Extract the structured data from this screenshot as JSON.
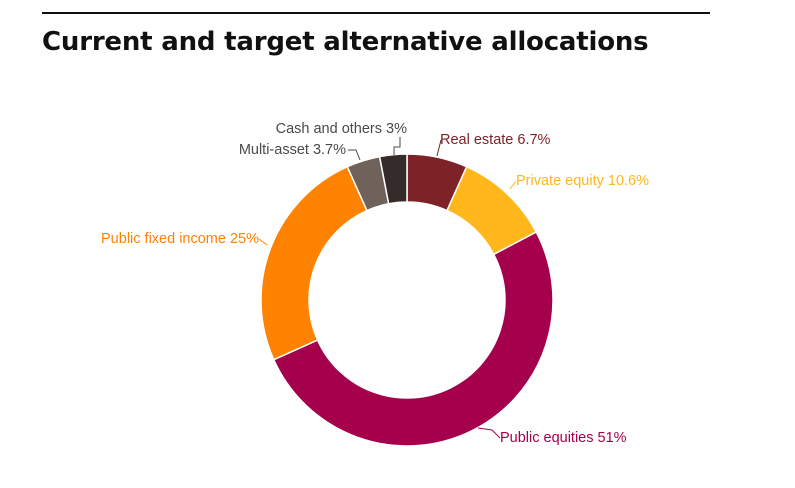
{
  "page": {
    "title": "Current and target alternative allocations"
  },
  "chart_data": {
    "type": "pie",
    "title": "Current and target alternative allocations",
    "slices": [
      {
        "name": "Real estate",
        "value": 6.7,
        "unit": "%",
        "label": "Real estate 6.7%",
        "color": "#7d2328",
        "label_color": "#7d2328"
      },
      {
        "name": "Private equity",
        "value": 10.6,
        "unit": "%",
        "label": "Private equity 10.6%",
        "color": "#ffb71b",
        "label_color": "#ffb71b"
      },
      {
        "name": "Public equities",
        "value": 51,
        "unit": "%",
        "label": "Public equities 51%",
        "color": "#a5004c",
        "label_color": "#a5004c"
      },
      {
        "name": "Public fixed income",
        "value": 25,
        "unit": "%",
        "label": "Public fixed income 25%",
        "color": "#ff8200",
        "label_color": "#ff8200"
      },
      {
        "name": "Multi-asset",
        "value": 3.7,
        "unit": "%",
        "label": "Multi-asset 3.7%",
        "color": "#6f625a",
        "label_color": "#4a4a4a"
      },
      {
        "name": "Cash and others",
        "value": 3,
        "unit": "%",
        "label": "Cash and others 3%",
        "color": "#342b2a",
        "label_color": "#4a4a4a"
      }
    ],
    "donut": true,
    "legend": "none (direct labels with leader lines)"
  }
}
